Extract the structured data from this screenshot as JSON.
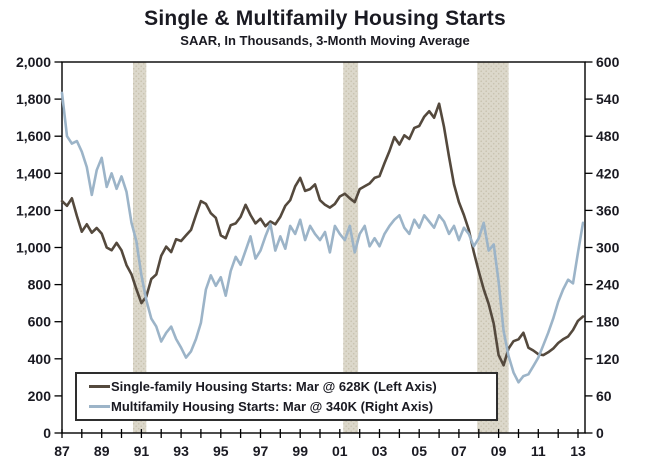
{
  "title": "Single & Multifamily Housing Starts",
  "subtitle": "SAAR, In Thousands, 3-Month Moving Average",
  "colors": {
    "single_family": "#54493d",
    "multifamily": "#9cb4c8",
    "recession_band": "#dcd8cb",
    "recession_band_dot": "#c8c2af",
    "axis": "#000000",
    "text": "#1a1a22",
    "background": "#ffffff",
    "legend_border": "#2e2e2e"
  },
  "legend": {
    "items": [
      {
        "label": "Single-family Housing Starts: Mar @ 628K (Left Axis)",
        "series": "single_family"
      },
      {
        "label": "Multifamily Housing Starts: Mar @ 340K (Right Axis)",
        "series": "multifamily"
      }
    ]
  },
  "axes": {
    "left": {
      "tick_labels": [
        "0",
        "200",
        "400",
        "600",
        "800",
        "1,000",
        "1,200",
        "1,400",
        "1,600",
        "1,800",
        "2,000"
      ],
      "tick_values": [
        0,
        200,
        400,
        600,
        800,
        1000,
        1200,
        1400,
        1600,
        1800,
        2000
      ]
    },
    "right": {
      "tick_labels": [
        "0",
        "60",
        "120",
        "180",
        "240",
        "300",
        "360",
        "420",
        "480",
        "540",
        "600"
      ],
      "tick_values": [
        0,
        60,
        120,
        180,
        240,
        300,
        360,
        420,
        480,
        540,
        600
      ]
    },
    "x": {
      "tick_labels": [
        "87",
        "89",
        "91",
        "93",
        "95",
        "97",
        "99",
        "01",
        "03",
        "05",
        "07",
        "09",
        "11",
        "13"
      ],
      "tick_years": [
        1987,
        1989,
        1991,
        1993,
        1995,
        1997,
        1999,
        2001,
        2003,
        2005,
        2007,
        2009,
        2011,
        2013
      ],
      "minor_tick_start": 1987,
      "minor_tick_end": 2013,
      "minor_tick_step": 1
    }
  },
  "chart_data": {
    "type": "line",
    "title": "Single & Multifamily Housing Starts",
    "subtitle": "SAAR, In Thousands, 3-Month Moving Average",
    "grid": false,
    "legend_position": "inside-bottom-left",
    "left_ylim": [
      0,
      2000
    ],
    "right_ylim": [
      0,
      600
    ],
    "xlim": [
      1987,
      2013.35
    ],
    "recession_bands": [
      [
        1990.58,
        1991.25
      ],
      [
        2001.17,
        2001.92
      ],
      [
        2007.92,
        2009.5
      ]
    ],
    "x": [
      1987,
      1987.25,
      1987.5,
      1987.75,
      1988,
      1988.25,
      1988.5,
      1988.75,
      1989,
      1989.25,
      1989.5,
      1989.75,
      1990,
      1990.25,
      1990.5,
      1990.75,
      1991,
      1991.25,
      1991.5,
      1991.75,
      1992,
      1992.25,
      1992.5,
      1992.75,
      1993,
      1993.25,
      1993.5,
      1993.75,
      1994,
      1994.25,
      1994.5,
      1994.75,
      1995,
      1995.25,
      1995.5,
      1995.75,
      1996,
      1996.25,
      1996.5,
      1996.75,
      1997,
      1997.25,
      1997.5,
      1997.75,
      1998,
      1998.25,
      1998.5,
      1998.75,
      1999,
      1999.25,
      1999.5,
      1999.75,
      2000,
      2000.25,
      2000.5,
      2000.75,
      2001,
      2001.25,
      2001.5,
      2001.75,
      2002,
      2002.25,
      2002.5,
      2002.75,
      2003,
      2003.25,
      2003.5,
      2003.75,
      2004,
      2004.25,
      2004.5,
      2004.75,
      2005,
      2005.25,
      2005.5,
      2005.75,
      2006,
      2006.25,
      2006.5,
      2006.75,
      2007,
      2007.25,
      2007.5,
      2007.75,
      2008,
      2008.25,
      2008.5,
      2008.75,
      2009,
      2009.25,
      2009.5,
      2009.75,
      2010,
      2010.25,
      2010.5,
      2010.75,
      2011,
      2011.25,
      2011.5,
      2011.75,
      2012,
      2012.25,
      2012.5,
      2012.75,
      2013,
      2013.25
    ],
    "series": [
      {
        "name": "Single-family Housing Starts",
        "latest_label": "Mar @ 628K",
        "axis": "left",
        "color": "#54493d",
        "values": [
          1250,
          1225,
          1265,
          1170,
          1085,
          1125,
          1080,
          1105,
          1075,
          1000,
          985,
          1025,
          985,
          905,
          855,
          775,
          700,
          735,
          830,
          855,
          955,
          1005,
          975,
          1045,
          1035,
          1065,
          1095,
          1175,
          1250,
          1235,
          1185,
          1160,
          1065,
          1050,
          1120,
          1130,
          1165,
          1230,
          1175,
          1130,
          1155,
          1115,
          1140,
          1125,
          1165,
          1225,
          1255,
          1330,
          1375,
          1305,
          1315,
          1340,
          1255,
          1230,
          1215,
          1235,
          1275,
          1290,
          1265,
          1245,
          1315,
          1330,
          1345,
          1375,
          1385,
          1455,
          1520,
          1595,
          1555,
          1605,
          1585,
          1645,
          1655,
          1705,
          1735,
          1700,
          1775,
          1650,
          1490,
          1340,
          1245,
          1175,
          1095,
          975,
          870,
          775,
          695,
          590,
          420,
          365,
          455,
          495,
          505,
          540,
          460,
          445,
          425,
          420,
          435,
          455,
          485,
          505,
          520,
          555,
          605,
          628
        ]
      },
      {
        "name": "Multifamily Housing Starts",
        "latest_label": "Mar @ 340K",
        "axis": "right",
        "color": "#9cb4c8",
        "values": [
          550,
          480,
          468,
          472,
          455,
          430,
          385,
          425,
          445,
          398,
          420,
          395,
          415,
          390,
          340,
          310,
          255,
          215,
          185,
          172,
          148,
          162,
          172,
          152,
          138,
          122,
          132,
          152,
          178,
          232,
          255,
          238,
          252,
          222,
          262,
          285,
          272,
          295,
          318,
          282,
          295,
          318,
          338,
          295,
          318,
          298,
          335,
          322,
          345,
          312,
          335,
          322,
          312,
          325,
          292,
          335,
          322,
          312,
          335,
          292,
          322,
          335,
          302,
          315,
          302,
          322,
          335,
          345,
          352,
          332,
          322,
          345,
          332,
          352,
          342,
          332,
          352,
          342,
          322,
          335,
          312,
          332,
          322,
          302,
          315,
          340,
          295,
          305,
          245,
          165,
          125,
          98,
          82,
          92,
          95,
          108,
          122,
          142,
          162,
          185,
          212,
          232,
          248,
          242,
          292,
          340
        ]
      }
    ]
  }
}
